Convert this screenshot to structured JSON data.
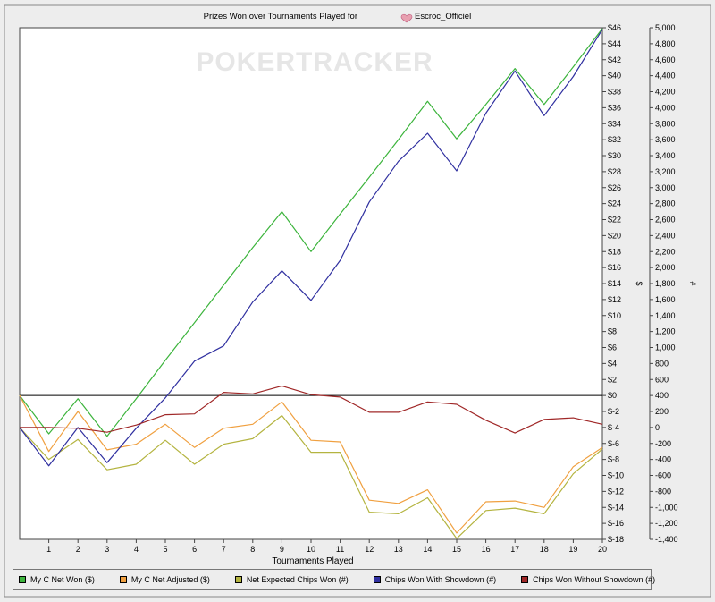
{
  "chart_data": {
    "type": "line",
    "title": "Prizes Won over Tournaments Played for",
    "player": "Escroc_Officiel",
    "watermark": "POKERTRACKER",
    "xlabel": "Tournaments Played",
    "y_left_label": "$",
    "y_right_label": "#",
    "x": [
      0,
      1,
      2,
      3,
      4,
      5,
      6,
      7,
      8,
      9,
      10,
      11,
      12,
      13,
      14,
      15,
      16,
      17,
      18,
      19,
      20
    ],
    "x_ticks": [
      "1",
      "2",
      "3",
      "4",
      "5",
      "6",
      "7",
      "8",
      "9",
      "10",
      "11",
      "12",
      "13",
      "14",
      "15",
      "16",
      "17",
      "18",
      "19",
      "20"
    ],
    "xlim": [
      0,
      20
    ],
    "ylim_left": [
      -18,
      46
    ],
    "ylim_right": [
      -1400,
      5000
    ],
    "y_left_ticks": [
      "$46",
      "$44",
      "$42",
      "$40",
      "$38",
      "$36",
      "$34",
      "$32",
      "$30",
      "$28",
      "$26",
      "$24",
      "$22",
      "$20",
      "$18",
      "$16",
      "$14",
      "$12",
      "$10",
      "$8",
      "$6",
      "$4",
      "$2",
      "$0",
      "$-2",
      "$-4",
      "$-6",
      "$-8",
      "$-10",
      "$-12",
      "$-14",
      "$-16",
      "$-18"
    ],
    "y_right_ticks": [
      "5,000",
      "4,800",
      "4,600",
      "4,400",
      "4,200",
      "4,000",
      "3,800",
      "3,600",
      "3,400",
      "3,200",
      "3,000",
      "2,800",
      "2,600",
      "2,400",
      "2,200",
      "2,000",
      "1,800",
      "1,600",
      "1,400",
      "1,200",
      "1,000",
      "800",
      "600",
      "400",
      "200",
      "0",
      "-200",
      "-400",
      "-600",
      "-800",
      "-1,000",
      "-1,200",
      "-1,400"
    ],
    "grid": false,
    "legend_position": "bottom",
    "series": [
      {
        "name": "My C Net Won ($)",
        "axis": "left",
        "color": "#3cb43c",
        "values": [
          0,
          -4.8,
          -0.4,
          -5.1,
          -0.4,
          4.4,
          9.1,
          13.8,
          18.5,
          23.0,
          18.0,
          22.7,
          27.3,
          32.0,
          36.8,
          32.1,
          36.4,
          40.9,
          36.4,
          41.1,
          45.9
        ]
      },
      {
        "name": "My C Net Adjusted ($)",
        "axis": "left",
        "color": "#f0a040",
        "values": [
          0,
          -7.0,
          -2.0,
          -6.8,
          -6.1,
          -3.6,
          -6.5,
          -4.1,
          -3.6,
          -0.8,
          -5.6,
          -5.8,
          -13.1,
          -13.5,
          -11.8,
          -17.2,
          -13.3,
          -13.2,
          -14.0,
          -8.9,
          -6.5
        ]
      },
      {
        "name": "Net Expected Chips Won (#)",
        "axis": "right",
        "color": "#b4b440",
        "values": [
          0,
          -400,
          -150,
          -530,
          -460,
          -160,
          -460,
          -210,
          -140,
          150,
          -310,
          -310,
          -1060,
          -1080,
          -880,
          -1390,
          -1040,
          -1010,
          -1080,
          -580,
          -270
        ]
      },
      {
        "name": "Chips Won With Showdown (#)",
        "axis": "right",
        "color": "#3030a0",
        "values": [
          0,
          -480,
          0,
          -440,
          -10,
          370,
          830,
          1020,
          1570,
          1960,
          1590,
          2090,
          2820,
          3330,
          3680,
          3210,
          3930,
          4460,
          3900,
          4390,
          4980
        ]
      },
      {
        "name": "Chips Won Without Showdown (#)",
        "axis": "right",
        "color": "#a02828",
        "values": [
          0,
          0,
          -10,
          -60,
          30,
          160,
          170,
          440,
          420,
          520,
          410,
          380,
          190,
          190,
          320,
          290,
          90,
          -70,
          100,
          120,
          40
        ]
      }
    ]
  }
}
